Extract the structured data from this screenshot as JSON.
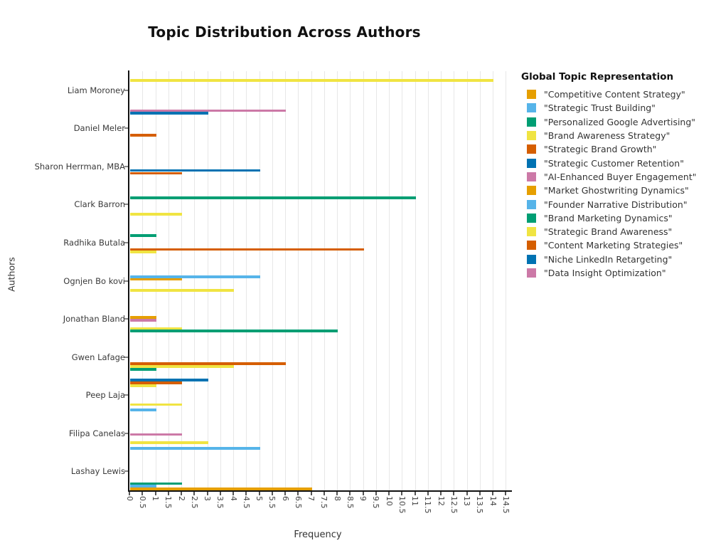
{
  "chart_data": {
    "type": "bar",
    "orientation": "horizontal",
    "title": "Topic Distribution Across Authors",
    "xlabel": "Frequency",
    "ylabel": "Authors",
    "legend_title": "Global Topic Representation",
    "legend_position": "right",
    "grid": true,
    "xlim": [
      0,
      14.5
    ],
    "xtick_step": 0.5,
    "xticks": [
      "0",
      "0.5",
      "1",
      "1.5",
      "2",
      "2.5",
      "3",
      "3.5",
      "4",
      "4.5",
      "5",
      "5.5",
      "6",
      "6.5",
      "7",
      "7.5",
      "8",
      "8.5",
      "9",
      "9.5",
      "10",
      "10.5",
      "11",
      "11.5",
      "12",
      "12.5",
      "13",
      "13.5",
      "14",
      "14.5"
    ],
    "topics": [
      {
        "label": "\"Competitive Content Strategy\"",
        "color": "#E69F00"
      },
      {
        "label": "\"Strategic Trust Building\"",
        "color": "#56B4E9"
      },
      {
        "label": "\"Personalized Google Advertising\"",
        "color": "#009E73"
      },
      {
        "label": "\"Brand Awareness Strategy\"",
        "color": "#F0E442"
      },
      {
        "label": "\"Strategic Brand Growth\"",
        "color": "#D55E00"
      },
      {
        "label": "\"Strategic Customer Retention\"",
        "color": "#0072B2"
      },
      {
        "label": "\"AI-Enhanced Buyer Engagement\"",
        "color": "#CC79A7"
      },
      {
        "label": "\"Market Ghostwriting Dynamics\"",
        "color": "#E69F00"
      },
      {
        "label": "\"Founder Narrative Distribution\"",
        "color": "#56B4E9"
      },
      {
        "label": "\"Brand Marketing Dynamics\"",
        "color": "#009E73"
      },
      {
        "label": "\"Strategic Brand Awareness\"",
        "color": "#F0E442"
      },
      {
        "label": "\"Content Marketing Strategies\"",
        "color": "#D55E00"
      },
      {
        "label": "\"Niche LinkedIn Retargeting\"",
        "color": "#0072B2"
      },
      {
        "label": "\"Data Insight Optimization\"",
        "color": "#CC79A7"
      }
    ],
    "authors": [
      {
        "name": "Liam Moroney",
        "bars": [
          {
            "topic_index": 10,
            "value": 14
          }
        ]
      },
      {
        "name": "Daniel Meler",
        "bars": [
          {
            "topic_index": 13,
            "value": 6
          },
          {
            "topic_index": 12,
            "value": 3
          },
          {
            "topic_index": 4,
            "value": 1
          }
        ]
      },
      {
        "name": "Sharon Herrman, MBA",
        "bars": [
          {
            "topic_index": 5,
            "value": 5
          },
          {
            "topic_index": 4,
            "value": 2
          }
        ]
      },
      {
        "name": "Clark Barron",
        "bars": [
          {
            "topic_index": 9,
            "value": 11
          },
          {
            "topic_index": 3,
            "value": 2
          }
        ]
      },
      {
        "name": "Radhika Butala",
        "bars": [
          {
            "topic_index": 9,
            "value": 1
          },
          {
            "topic_index": 4,
            "value": 9
          },
          {
            "topic_index": 3,
            "value": 1
          }
        ]
      },
      {
        "name": "Ognjen Bo kovi",
        "bars": [
          {
            "topic_index": 8,
            "value": 5
          },
          {
            "topic_index": 7,
            "value": 2
          },
          {
            "topic_index": 3,
            "value": 4
          }
        ]
      },
      {
        "name": "Jonathan Bland",
        "bars": [
          {
            "topic_index": 7,
            "value": 1
          },
          {
            "topic_index": 6,
            "value": 1
          },
          {
            "topic_index": 3,
            "value": 2
          },
          {
            "topic_index": 2,
            "value": 8
          }
        ]
      },
      {
        "name": "Gwen Lafage",
        "bars": [
          {
            "topic_index": 4,
            "value": 6
          },
          {
            "topic_index": 3,
            "value": 4
          },
          {
            "topic_index": 2,
            "value": 1
          }
        ]
      },
      {
        "name": "Peep Laja",
        "bars": [
          {
            "topic_index": 12,
            "value": 3
          },
          {
            "topic_index": 11,
            "value": 2
          },
          {
            "topic_index": 10,
            "value": 1
          },
          {
            "topic_index": 3,
            "value": 2
          },
          {
            "topic_index": 1,
            "value": 1
          }
        ]
      },
      {
        "name": "Filipa Canelas",
        "bars": [
          {
            "topic_index": 6,
            "value": 2
          },
          {
            "topic_index": 3,
            "value": 3
          },
          {
            "topic_index": 1,
            "value": 5
          }
        ]
      },
      {
        "name": "Lashay Lewis",
        "bars": [
          {
            "topic_index": 2,
            "value": 2
          },
          {
            "topic_index": 1,
            "value": 1
          },
          {
            "topic_index": 0,
            "value": 7
          }
        ]
      }
    ]
  }
}
